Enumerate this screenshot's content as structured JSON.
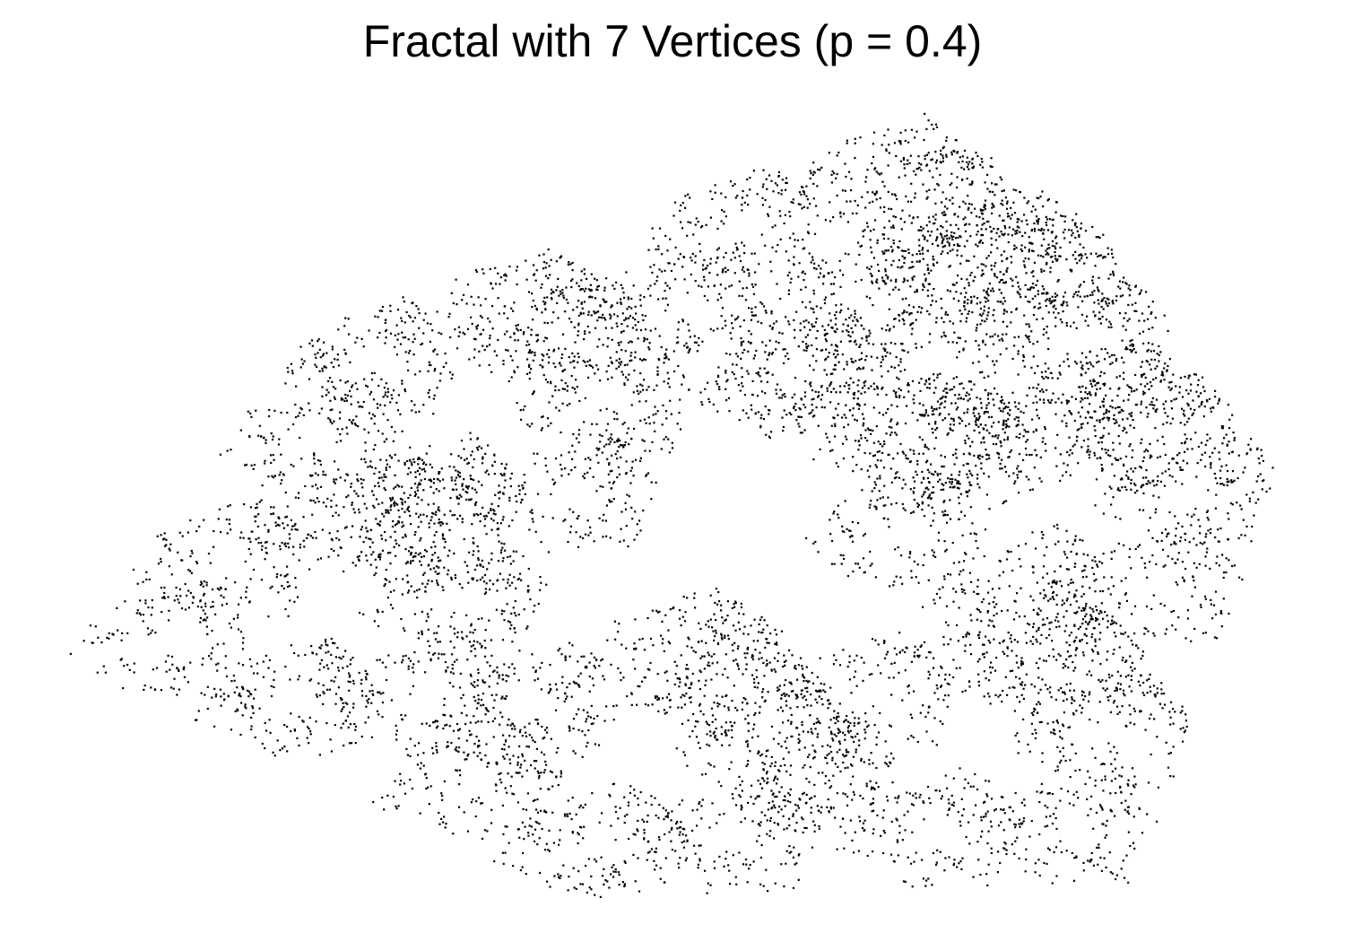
{
  "chart_data": {
    "type": "scatter",
    "title": "Fractal with 7 Vertices (p = 0.4)",
    "xlabel": "",
    "ylabel": "",
    "axes_visible": false,
    "grid": false,
    "legend": "none",
    "point_color": "#000000",
    "background_color": "#ffffff",
    "vertices": 7,
    "p": 0.4,
    "point_count": 9000,
    "xlim": [
      0.0,
      1.0
    ],
    "ylim": [
      0.0,
      1.0
    ],
    "vertex_points": [
      {
        "x": 0.0,
        "y": 0.3
      },
      {
        "x": 0.42,
        "y": 0.0
      },
      {
        "x": 0.88,
        "y": 0.02
      },
      {
        "x": 1.0,
        "y": 0.53
      },
      {
        "x": 0.85,
        "y": 0.85
      },
      {
        "x": 0.7,
        "y": 1.0
      },
      {
        "x": 0.2,
        "y": 0.72
      }
    ]
  }
}
